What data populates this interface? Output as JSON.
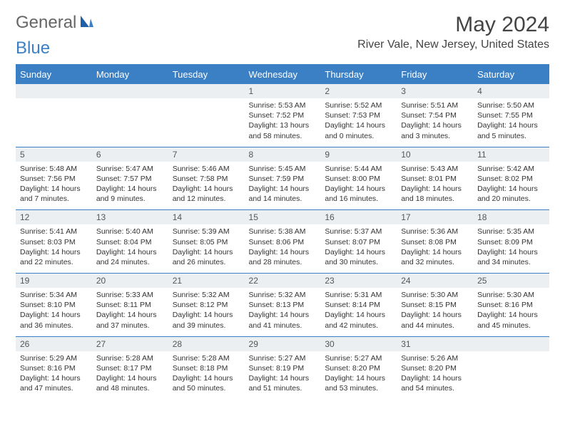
{
  "logo": {
    "part1": "General",
    "part2": "Blue"
  },
  "title": "May 2024",
  "location": "River Vale, New Jersey, United States",
  "colors": {
    "header_bg": "#3b7fc4",
    "header_text": "#ffffff",
    "daynum_bg": "#eceff1",
    "border": "#3b7fc4",
    "body_bg": "#ffffff",
    "text": "#333333"
  },
  "daysOfWeek": [
    "Sunday",
    "Monday",
    "Tuesday",
    "Wednesday",
    "Thursday",
    "Friday",
    "Saturday"
  ],
  "weeks": [
    [
      null,
      null,
      null,
      {
        "n": "1",
        "sr": "5:53 AM",
        "ss": "7:52 PM",
        "dl": "13 hours and 58 minutes."
      },
      {
        "n": "2",
        "sr": "5:52 AM",
        "ss": "7:53 PM",
        "dl": "14 hours and 0 minutes."
      },
      {
        "n": "3",
        "sr": "5:51 AM",
        "ss": "7:54 PM",
        "dl": "14 hours and 3 minutes."
      },
      {
        "n": "4",
        "sr": "5:50 AM",
        "ss": "7:55 PM",
        "dl": "14 hours and 5 minutes."
      }
    ],
    [
      {
        "n": "5",
        "sr": "5:48 AM",
        "ss": "7:56 PM",
        "dl": "14 hours and 7 minutes."
      },
      {
        "n": "6",
        "sr": "5:47 AM",
        "ss": "7:57 PM",
        "dl": "14 hours and 9 minutes."
      },
      {
        "n": "7",
        "sr": "5:46 AM",
        "ss": "7:58 PM",
        "dl": "14 hours and 12 minutes."
      },
      {
        "n": "8",
        "sr": "5:45 AM",
        "ss": "7:59 PM",
        "dl": "14 hours and 14 minutes."
      },
      {
        "n": "9",
        "sr": "5:44 AM",
        "ss": "8:00 PM",
        "dl": "14 hours and 16 minutes."
      },
      {
        "n": "10",
        "sr": "5:43 AM",
        "ss": "8:01 PM",
        "dl": "14 hours and 18 minutes."
      },
      {
        "n": "11",
        "sr": "5:42 AM",
        "ss": "8:02 PM",
        "dl": "14 hours and 20 minutes."
      }
    ],
    [
      {
        "n": "12",
        "sr": "5:41 AM",
        "ss": "8:03 PM",
        "dl": "14 hours and 22 minutes."
      },
      {
        "n": "13",
        "sr": "5:40 AM",
        "ss": "8:04 PM",
        "dl": "14 hours and 24 minutes."
      },
      {
        "n": "14",
        "sr": "5:39 AM",
        "ss": "8:05 PM",
        "dl": "14 hours and 26 minutes."
      },
      {
        "n": "15",
        "sr": "5:38 AM",
        "ss": "8:06 PM",
        "dl": "14 hours and 28 minutes."
      },
      {
        "n": "16",
        "sr": "5:37 AM",
        "ss": "8:07 PM",
        "dl": "14 hours and 30 minutes."
      },
      {
        "n": "17",
        "sr": "5:36 AM",
        "ss": "8:08 PM",
        "dl": "14 hours and 32 minutes."
      },
      {
        "n": "18",
        "sr": "5:35 AM",
        "ss": "8:09 PM",
        "dl": "14 hours and 34 minutes."
      }
    ],
    [
      {
        "n": "19",
        "sr": "5:34 AM",
        "ss": "8:10 PM",
        "dl": "14 hours and 36 minutes."
      },
      {
        "n": "20",
        "sr": "5:33 AM",
        "ss": "8:11 PM",
        "dl": "14 hours and 37 minutes."
      },
      {
        "n": "21",
        "sr": "5:32 AM",
        "ss": "8:12 PM",
        "dl": "14 hours and 39 minutes."
      },
      {
        "n": "22",
        "sr": "5:32 AM",
        "ss": "8:13 PM",
        "dl": "14 hours and 41 minutes."
      },
      {
        "n": "23",
        "sr": "5:31 AM",
        "ss": "8:14 PM",
        "dl": "14 hours and 42 minutes."
      },
      {
        "n": "24",
        "sr": "5:30 AM",
        "ss": "8:15 PM",
        "dl": "14 hours and 44 minutes."
      },
      {
        "n": "25",
        "sr": "5:30 AM",
        "ss": "8:16 PM",
        "dl": "14 hours and 45 minutes."
      }
    ],
    [
      {
        "n": "26",
        "sr": "5:29 AM",
        "ss": "8:16 PM",
        "dl": "14 hours and 47 minutes."
      },
      {
        "n": "27",
        "sr": "5:28 AM",
        "ss": "8:17 PM",
        "dl": "14 hours and 48 minutes."
      },
      {
        "n": "28",
        "sr": "5:28 AM",
        "ss": "8:18 PM",
        "dl": "14 hours and 50 minutes."
      },
      {
        "n": "29",
        "sr": "5:27 AM",
        "ss": "8:19 PM",
        "dl": "14 hours and 51 minutes."
      },
      {
        "n": "30",
        "sr": "5:27 AM",
        "ss": "8:20 PM",
        "dl": "14 hours and 53 minutes."
      },
      {
        "n": "31",
        "sr": "5:26 AM",
        "ss": "8:20 PM",
        "dl": "14 hours and 54 minutes."
      },
      null
    ]
  ],
  "labels": {
    "sunrise": "Sunrise: ",
    "sunset": "Sunset: ",
    "daylight": "Daylight: "
  }
}
